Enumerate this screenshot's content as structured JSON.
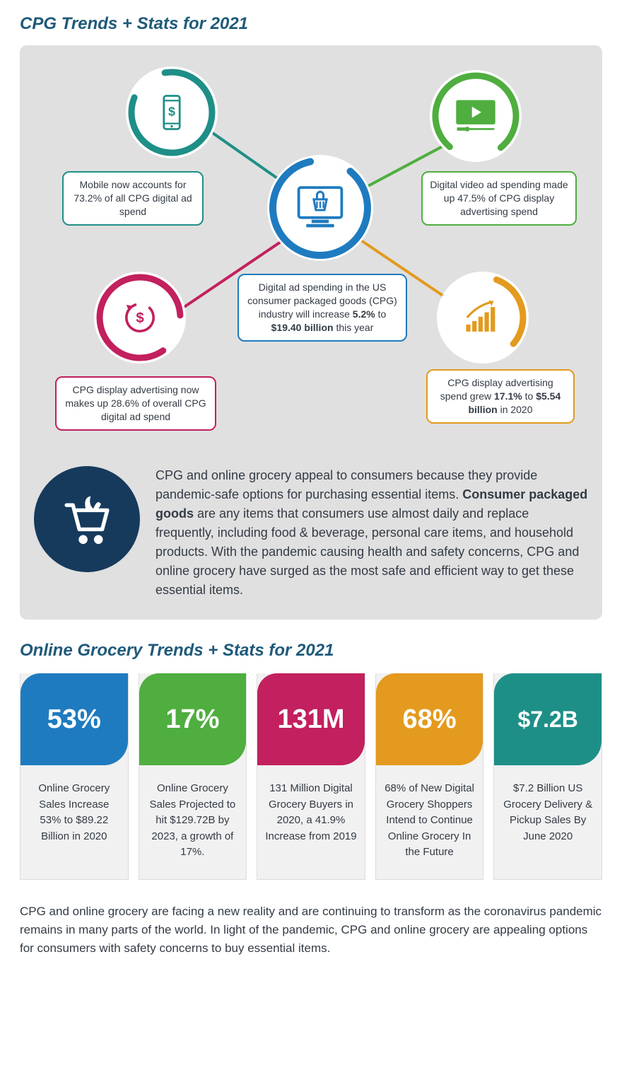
{
  "titles": {
    "cpg": "CPG Trends + Stats for 2021",
    "grocery": "Online Grocery Trends + Stats for 2021"
  },
  "colors": {
    "title": "#1f5a7a",
    "panel_bg": "#e0e0e0",
    "text": "#333b45",
    "card_bg": "#f1f1f1"
  },
  "diagram": {
    "center": {
      "color": "#1f7bbf",
      "text_html": "Digital ad spending in the US consumer packaged goods (CPG) industry will increase <b>5.2%</b> to <b>$19.40 billion</b> this year"
    },
    "nodes": {
      "mobile": {
        "color": "#1e8f87",
        "caption": "Mobile now accounts for 73.2% of all CPG digital ad spend"
      },
      "video": {
        "color": "#4fae3f",
        "caption": "Digital video ad spending made up 47.5% of CPG display advertising spend"
      },
      "display": {
        "color": "#c2205e",
        "caption": "CPG display advertising now makes up 28.6% of overall CPG digital ad spend"
      },
      "growth": {
        "color": "#e39a1e",
        "caption_html": "CPG display advertising spend grew <b>17.1%</b> to <b>$5.54 billion</b> in 2020"
      }
    }
  },
  "description": {
    "badge_color": "#163a5c",
    "text_html": "CPG and online grocery appeal to consumers because they provide pandemic-safe options for purchasing essential items. <b>Consumer packaged goods</b> are any items that consumers use almost daily and replace frequently, including food & beverage, personal care items, and household products. With the pandemic causing health and safety concerns, CPG and online grocery have surged as the most safe and efficient way to get these essential items."
  },
  "stats": [
    {
      "value": "53%",
      "color": "#1f7bbf",
      "text": "Online Grocery Sales Increase 53% to $89.22 Billion in 2020"
    },
    {
      "value": "17%",
      "color": "#4fae3f",
      "text": "Online Grocery Sales Projected to hit $129.72B by 2023, a growth of 17%."
    },
    {
      "value": "131M",
      "color": "#c2205e",
      "text": "131 Million Digital Grocery Buyers in 2020, a 41.9% Increase from 2019"
    },
    {
      "value": "68%",
      "color": "#e39a1e",
      "text": "68% of New Digital Grocery Shoppers Intend to Continue Online Grocery In the Future"
    },
    {
      "value": "$7.2B",
      "color": "#1e8f87",
      "text": "$7.2 Billion US Grocery Delivery & Pickup Sales By June 2020"
    }
  ],
  "footer": "CPG and online grocery are facing a new reality and are continuing to transform as the coronavirus pandemic remains in many parts of the world. In light of the pandemic, CPG and online grocery are appealing options for consumers with safety concerns to buy essential items."
}
